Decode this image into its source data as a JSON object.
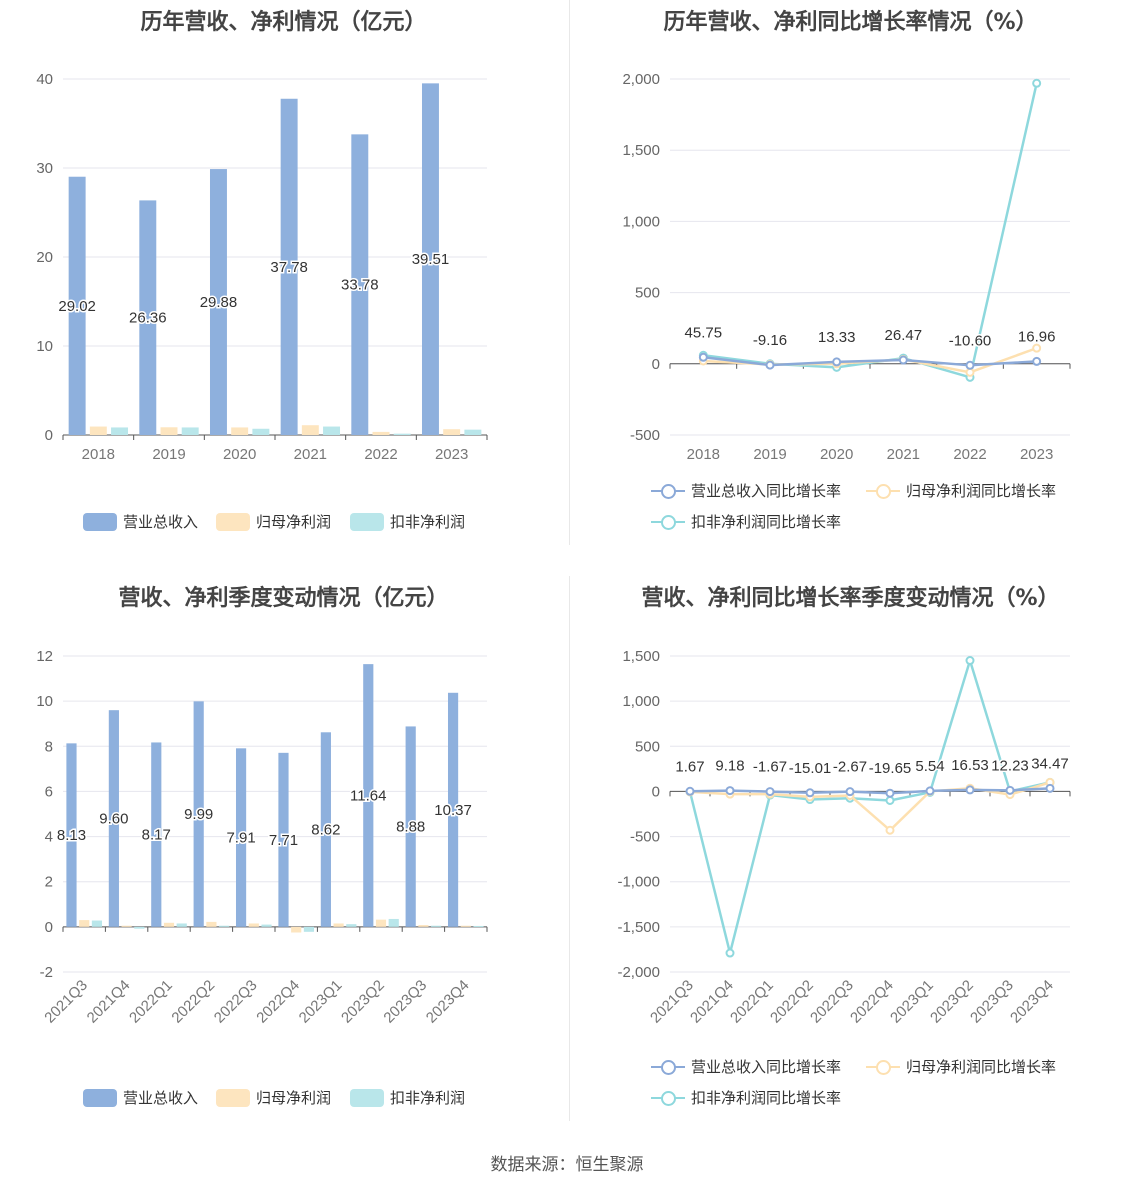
{
  "footer": {
    "source": "数据来源：恒生聚源"
  },
  "colors": {
    "revenue": "#8eb0dd",
    "net_profit": "#fde5bf",
    "deducted_profit": "#b9e6ea",
    "line_revenue": "#8ba9d8",
    "line_net": "#fde0b0",
    "line_deducted": "#8ed8dd",
    "grid": "#e6e6ee",
    "axis": "#666666"
  },
  "panels": [
    {
      "title": "历年营收、净利情况（亿元）",
      "legend": [
        {
          "label": "营业总收入",
          "color_key": "revenue"
        },
        {
          "label": "归母净利润",
          "color_key": "net_profit"
        },
        {
          "label": "扣非净利润",
          "color_key": "deducted_profit"
        }
      ]
    },
    {
      "title": "历年营收、净利同比增长率情况（%）",
      "legend": [
        {
          "label": "营业总收入同比增长率",
          "color_key": "line_revenue"
        },
        {
          "label": "归母净利润同比增长率",
          "color_key": "line_net"
        },
        {
          "label": "扣非净利润同比增长率",
          "color_key": "line_deducted"
        }
      ]
    },
    {
      "title": "营收、净利季度变动情况（亿元）",
      "legend": [
        {
          "label": "营业总收入",
          "color_key": "revenue"
        },
        {
          "label": "归母净利润",
          "color_key": "net_profit"
        },
        {
          "label": "扣非净利润",
          "color_key": "deducted_profit"
        }
      ]
    },
    {
      "title": "营收、净利同比增长率季度变动情况（%）",
      "legend": [
        {
          "label": "营业总收入同比增长率",
          "color_key": "line_revenue"
        },
        {
          "label": "归母净利润同比增长率",
          "color_key": "line_net"
        },
        {
          "label": "扣非净利润同比增长率",
          "color_key": "line_deducted"
        }
      ]
    }
  ],
  "chart_data": [
    {
      "type": "bar",
      "title": "历年营收、净利情况（亿元）",
      "categories": [
        "2018",
        "2019",
        "2020",
        "2021",
        "2022",
        "2023"
      ],
      "ylim": [
        0,
        40
      ],
      "yticks": [
        "0",
        "10",
        "20",
        "30",
        "40"
      ],
      "grid": true,
      "legend_position": "bottom",
      "series": [
        {
          "name": "营业总收入",
          "color": "#8eb0dd",
          "values": [
            29.02,
            26.36,
            29.88,
            37.78,
            33.78,
            39.51
          ],
          "labels": [
            "29.02",
            "26.36",
            "29.88",
            "37.78",
            "33.78",
            "39.51"
          ]
        },
        {
          "name": "归母净利润",
          "color": "#fde5bf",
          "values": [
            0.95,
            0.87,
            0.85,
            1.1,
            0.35,
            0.65
          ]
        },
        {
          "name": "扣非净利润",
          "color": "#b9e6ea",
          "values": [
            0.85,
            0.85,
            0.7,
            0.95,
            0.15,
            0.6
          ]
        }
      ]
    },
    {
      "type": "line",
      "title": "历年营收、净利同比增长率情况（%）",
      "categories": [
        "2018",
        "2019",
        "2020",
        "2021",
        "2022",
        "2023"
      ],
      "ylim": [
        -500,
        2000
      ],
      "yticks": [
        "-500",
        "0",
        "500",
        "1,000",
        "1,500",
        "2,000"
      ],
      "grid": true,
      "legend_position": "bottom",
      "series": [
        {
          "name": "营业总收入同比增长率",
          "color": "#8ba9d8",
          "values": [
            45.75,
            -9.16,
            13.33,
            26.47,
            -10.6,
            16.96
          ],
          "labels": [
            "45.75",
            "-9.16",
            "13.33",
            "26.47",
            "-10.60",
            "16.96"
          ]
        },
        {
          "name": "归母净利润同比增长率",
          "color": "#fde0b0",
          "values": [
            20,
            -5,
            0,
            30,
            -60,
            110
          ]
        },
        {
          "name": "扣非净利润同比增长率",
          "color": "#8ed8dd",
          "values": [
            60,
            0,
            -25,
            40,
            -95,
            1970
          ]
        }
      ]
    },
    {
      "type": "bar",
      "title": "营收、净利季度变动情况（亿元）",
      "categories": [
        "2021Q3",
        "2021Q4",
        "2022Q1",
        "2022Q2",
        "2022Q3",
        "2022Q4",
        "2023Q1",
        "2023Q2",
        "2023Q3",
        "2023Q4"
      ],
      "ylim": [
        -2,
        12
      ],
      "yticks": [
        "-2",
        "0",
        "2",
        "4",
        "6",
        "8",
        "10",
        "12"
      ],
      "grid": true,
      "legend_position": "bottom",
      "series": [
        {
          "name": "营业总收入",
          "color": "#8eb0dd",
          "values": [
            8.13,
            9.6,
            8.17,
            9.99,
            7.91,
            7.71,
            8.62,
            11.64,
            8.88,
            10.37
          ],
          "labels": [
            "8.13",
            "9.60",
            "8.17",
            "9.99",
            "7.91",
            "7.71",
            "8.62",
            "11.64",
            "8.88",
            "10.37"
          ]
        },
        {
          "name": "归母净利润",
          "color": "#fde5bf",
          "values": [
            0.3,
            0.05,
            0.18,
            0.22,
            0.15,
            -0.25,
            0.15,
            0.32,
            0.08,
            0.05
          ]
        },
        {
          "name": "扣非净利润",
          "color": "#b9e6ea",
          "values": [
            0.28,
            -0.08,
            0.15,
            0.05,
            0.1,
            -0.22,
            0.12,
            0.35,
            0.05,
            0.04
          ]
        }
      ]
    },
    {
      "type": "line",
      "title": "营收、净利同比增长率季度变动情况（%）",
      "categories": [
        "2021Q3",
        "2021Q4",
        "2022Q1",
        "2022Q2",
        "2022Q3",
        "2022Q4",
        "2023Q1",
        "2023Q2",
        "2023Q3",
        "2023Q4"
      ],
      "ylim": [
        -2000,
        1500
      ],
      "yticks": [
        "-2,000",
        "-1,500",
        "-1,000",
        "-500",
        "0",
        "500",
        "1,000",
        "1,500"
      ],
      "grid": true,
      "legend_position": "bottom",
      "series": [
        {
          "name": "营业总收入同比增长率",
          "color": "#8ba9d8",
          "values": [
            1.67,
            9.18,
            -1.67,
            -15.01,
            -2.67,
            -19.65,
            5.54,
            16.53,
            12.23,
            34.47
          ],
          "labels": [
            "1.67",
            "9.18",
            "-1.67",
            "-15.01",
            "-2.67",
            "-19.65",
            "5.54",
            "16.53",
            "12.23",
            "34.47"
          ]
        },
        {
          "name": "归母净利润同比增长率",
          "color": "#fde0b0",
          "values": [
            -5,
            -30,
            -30,
            -60,
            -45,
            -430,
            0,
            35,
            -35,
            100
          ]
        },
        {
          "name": "扣非净利润同比增长率",
          "color": "#8ed8dd",
          "values": [
            -5,
            -1790,
            -40,
            -90,
            -75,
            -100,
            -10,
            1450,
            0,
            100
          ]
        }
      ]
    }
  ]
}
